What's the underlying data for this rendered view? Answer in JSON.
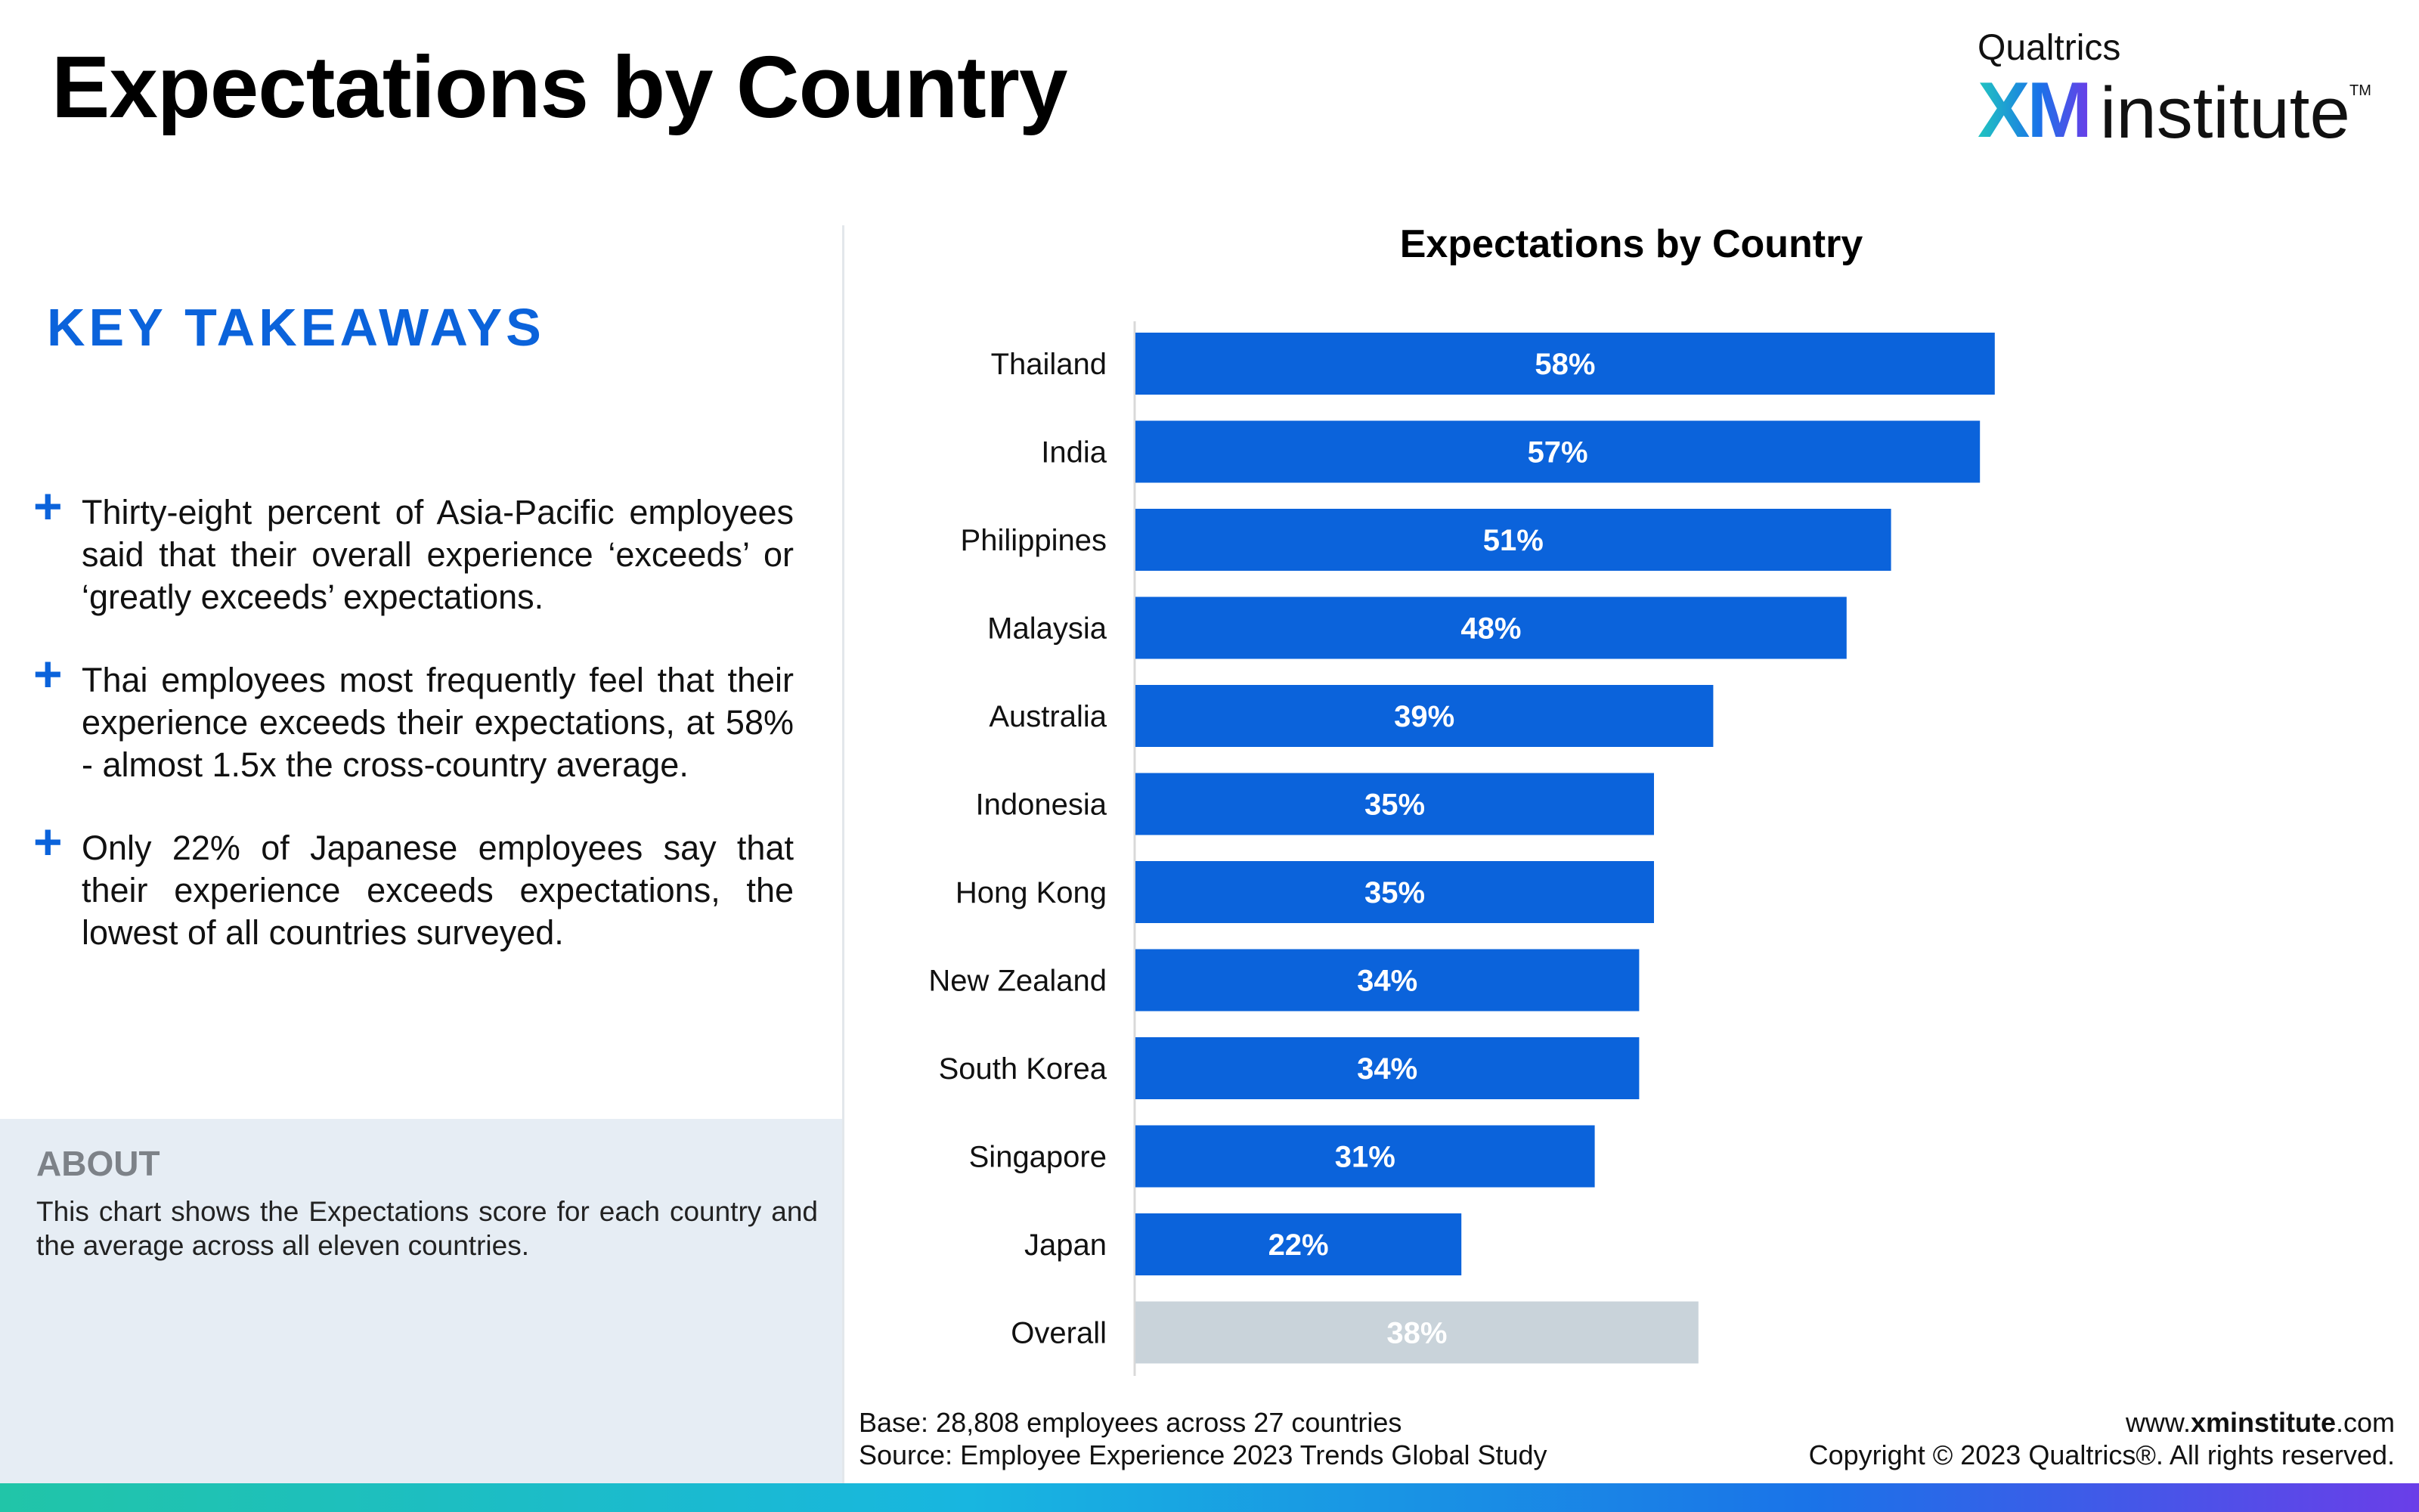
{
  "header": {
    "title": "Expectations by Country",
    "logo": {
      "brand": "Qualtrics",
      "mark": "XM",
      "product": "institute",
      "trademark": "TM"
    }
  },
  "takeaways": {
    "heading": "KEY TAKEAWAYS",
    "bullet_icon": "plus-icon",
    "items": [
      "Thirty-eight percent of Asia-Pacific employees said that their overall experience ‘exceeds’ or ‘greatly exceeds’ expectations.",
      "Thai employees most frequently feel that their experience exceeds their expectations, at 58% - almost 1.5x the cross-country average.",
      "Only 22% of Japanese employees say that their experience exceeds expectations, the lowest of all countries surveyed."
    ]
  },
  "about": {
    "heading": "ABOUT",
    "text": "This chart shows the Expectations score for each country and the average across all eleven countries."
  },
  "chart_data": {
    "type": "bar",
    "orientation": "horizontal",
    "title": "Expectations by Country",
    "xlabel": "",
    "ylabel": "",
    "xlim": [
      0,
      100
    ],
    "grid": false,
    "categories": [
      "Thailand",
      "India",
      "Philippines",
      "Malaysia",
      "Australia",
      "Indonesia",
      "Hong Kong",
      "New Zealand",
      "South Korea",
      "Singapore",
      "Japan",
      "Overall"
    ],
    "values": [
      58,
      57,
      51,
      48,
      39,
      35,
      35,
      34,
      34,
      31,
      22,
      38
    ],
    "value_labels": [
      "58%",
      "57%",
      "51%",
      "48%",
      "39%",
      "35%",
      "35%",
      "34%",
      "34%",
      "31%",
      "22%",
      "38%"
    ],
    "colors": {
      "country": "#0b63db",
      "overall": "#c9d3da",
      "axis": "#d9d9d9"
    }
  },
  "footer": {
    "base": "Base: 28,808 employees across 27 countries",
    "source": "Source: Employee Experience 2023 Trends Global Study",
    "url_prefix": "www.",
    "url_bold": "xminstitute",
    "url_suffix": ".com",
    "copyright": "Copyright © 2023 Qualtrics®. All rights reserved."
  }
}
